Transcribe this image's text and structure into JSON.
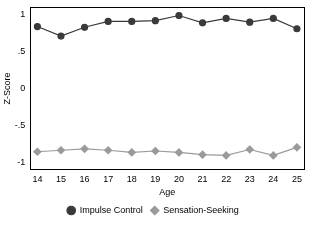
{
  "chart_data": {
    "type": "line",
    "x_label": "Age",
    "y_label": "Z-Score",
    "x": [
      14,
      15,
      16,
      17,
      18,
      19,
      20,
      21,
      22,
      23,
      24,
      25
    ],
    "series": [
      {
        "name": "Impulse Control",
        "color": "#3a3a3a",
        "marker": "circle",
        "values": [
          0.84,
          0.71,
          0.83,
          0.91,
          0.91,
          0.92,
          0.99,
          0.89,
          0.95,
          0.9,
          0.95,
          0.81
        ]
      },
      {
        "name": "Sensation-Seeking",
        "color": "#9a9a9a",
        "marker": "diamond",
        "values": [
          -0.86,
          -0.84,
          -0.82,
          -0.84,
          -0.87,
          -0.85,
          -0.87,
          -0.9,
          -0.91,
          -0.83,
          -0.91,
          -0.8
        ]
      }
    ],
    "xlim": [
      13.7,
      25.3
    ],
    "xticks": [
      14,
      15,
      16,
      17,
      18,
      19,
      20,
      21,
      22,
      23,
      24,
      25
    ],
    "ylim": [
      -1.1,
      1.1
    ],
    "yticks": [
      -1,
      {
        "value": -0.5,
        "label": "-.5"
      },
      0,
      {
        "value": 0.5,
        "label": ".5"
      },
      1
    ],
    "grid": false,
    "legend": "bottom"
  }
}
